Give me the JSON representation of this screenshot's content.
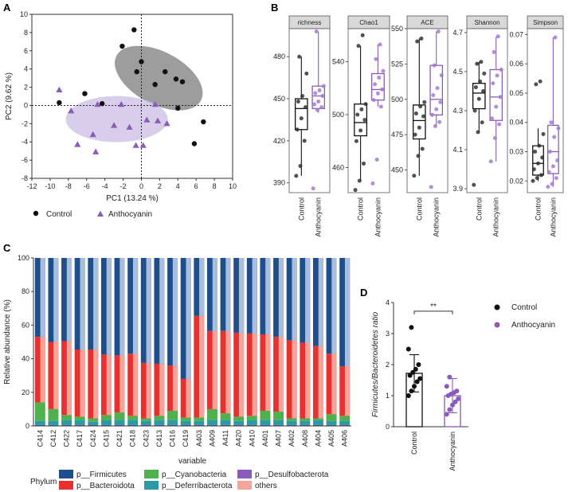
{
  "panel_letters": [
    "A",
    "B",
    "C",
    "D"
  ],
  "colors": {
    "control": "#111111",
    "anthocyanin": "#8a5bb8",
    "control_ellipse": "#8c8c8c",
    "anthocyanin_ellipse": "#cbbde6",
    "firmicutes": "#1f4e8c",
    "firmicutes_light": "#a9bedb",
    "bacteroidota": "#e8312f",
    "bacteroidota_light": "#f4a49a",
    "cyanobacteria": "#4fb04d",
    "deferribacterota": "#2a9aa4",
    "desulfobacterota": "#8a5bb8",
    "others": "#f4a49a"
  },
  "chart_data": [
    {
      "id": "A",
      "type": "scatter",
      "xlabel": "PC1 (13.24 %)",
      "ylabel": "PC2 (9.62 %)",
      "xlim": [
        -12,
        10
      ],
      "ylim": [
        -8,
        10
      ],
      "xticks": [
        -12,
        -10,
        -8,
        -6,
        -4,
        -2,
        0,
        2,
        4,
        6,
        8,
        10
      ],
      "yticks": [
        -8,
        -6,
        -4,
        -2,
        0,
        2,
        4,
        6,
        8,
        10
      ],
      "legend": [
        "Control",
        "Anthocyanin"
      ],
      "series": [
        {
          "name": "Control",
          "points": [
            [
              -0.8,
              8.3
            ],
            [
              -2.1,
              6.5
            ],
            [
              0,
              4.8
            ],
            [
              -0.5,
              3.7
            ],
            [
              2.6,
              3.7
            ],
            [
              3.8,
              2.9
            ],
            [
              4.5,
              2.6
            ],
            [
              1.5,
              2.3
            ],
            [
              -6.2,
              1.3
            ],
            [
              -9.0,
              0.3
            ],
            [
              -4.3,
              0.2
            ],
            [
              4.0,
              -0.3
            ],
            [
              6.8,
              -1.8
            ],
            [
              5.8,
              -4.2
            ]
          ]
        },
        {
          "name": "Anthocyanin",
          "points": [
            [
              -9.0,
              1.7
            ],
            [
              -7.7,
              -0.6
            ],
            [
              -4.8,
              0.1
            ],
            [
              -2.2,
              0.1
            ],
            [
              1.5,
              0.1
            ],
            [
              1.8,
              -1.7
            ],
            [
              2.8,
              -2.0
            ],
            [
              0.6,
              -1.6
            ],
            [
              -3.0,
              -2.2
            ],
            [
              -1.3,
              -2.4
            ],
            [
              -5.3,
              -3.2
            ],
            [
              -7.0,
              -4.3
            ],
            [
              -5.0,
              -5.1
            ],
            [
              -0.6,
              -4.4
            ],
            [
              0.2,
              -4.4
            ]
          ]
        }
      ]
    },
    {
      "id": "B-richness",
      "type": "box",
      "title": "richness",
      "ylim": [
        383,
        500
      ],
      "yticks": [
        390,
        420,
        450,
        480
      ],
      "categories": [
        "Control",
        "Anthocyanin"
      ],
      "boxes": [
        {
          "min": 395,
          "q1": 428,
          "median": 443,
          "q3": 450,
          "max": 480
        },
        {
          "min": 440,
          "q1": 443,
          "median": 452,
          "q3": 459,
          "max": 498
        }
      ],
      "points": [
        [
          395,
          402,
          420,
          428,
          436,
          444,
          448,
          452,
          468,
          480
        ],
        [
          386,
          442,
          444,
          446,
          448,
          452,
          454,
          456,
          459,
          498
        ]
      ]
    },
    {
      "id": "B-chao1",
      "type": "box",
      "title": "Chao1",
      "ylim": [
        441,
        565
      ],
      "yticks": [
        460,
        500,
        540
      ],
      "categories": [
        "Control",
        "Anthocyanin"
      ],
      "boxes": [
        {
          "min": 450,
          "q1": 484,
          "median": 494,
          "q3": 508,
          "max": 552
        },
        {
          "min": 506,
          "q1": 511,
          "median": 519,
          "q3": 531,
          "max": 553
        }
      ],
      "points": [
        [
          443,
          450,
          463,
          480,
          488,
          496,
          500,
          504,
          508,
          552,
          560
        ],
        [
          448,
          466,
          506,
          511,
          516,
          519,
          523,
          528,
          533,
          542,
          553
        ]
      ]
    },
    {
      "id": "B-ace",
      "type": "box",
      "title": "ACE",
      "ylim": [
        434,
        550
      ],
      "yticks": [
        450,
        475,
        500,
        525,
        550
      ],
      "categories": [
        "Control",
        "Anthocyanin"
      ],
      "boxes": [
        {
          "min": 446,
          "q1": 472,
          "median": 485,
          "q3": 496,
          "max": 543
        },
        {
          "min": 481,
          "q1": 489,
          "median": 500,
          "q3": 524,
          "max": 548
        }
      ],
      "points": [
        [
          446,
          460,
          465,
          475,
          480,
          488,
          490,
          495,
          498,
          541,
          543
        ],
        [
          438,
          481,
          484,
          489,
          493,
          498,
          503,
          508,
          517,
          524,
          548
        ]
      ]
    },
    {
      "id": "B-shannon",
      "type": "box",
      "title": "Shannon",
      "ylim": [
        3.88,
        4.72
      ],
      "yticks": [
        3.9,
        4.1,
        4.3,
        4.5,
        4.7
      ],
      "categories": [
        "Control",
        "Anthocyanin"
      ],
      "boxes": [
        {
          "min": 4.19,
          "q1": 4.31,
          "median": 4.39,
          "q3": 4.44,
          "max": 4.55
        },
        {
          "min": 4.04,
          "q1": 4.25,
          "median": 4.37,
          "q3": 4.51,
          "max": 4.68
        }
      ],
      "points": [
        [
          3.92,
          4.19,
          4.24,
          4.3,
          4.36,
          4.4,
          4.42,
          4.45,
          4.49,
          4.54,
          4.55
        ],
        [
          4.04,
          4.16,
          4.23,
          4.26,
          4.32,
          4.37,
          4.44,
          4.48,
          4.51,
          4.6,
          4.68
        ]
      ]
    },
    {
      "id": "B-simpson",
      "type": "box",
      "title": "Simpson",
      "ylim": [
        0.016,
        0.072
      ],
      "yticks": [
        0.02,
        0.03,
        0.04,
        0.05,
        0.06,
        0.07
      ],
      "categories": [
        "Control",
        "Anthocyanin"
      ],
      "boxes": [
        {
          "min": 0.02,
          "q1": 0.022,
          "median": 0.026,
          "q3": 0.032,
          "max": 0.038
        },
        {
          "min": 0.018,
          "q1": 0.0225,
          "median": 0.03,
          "q3": 0.039,
          "max": 0.069
        }
      ],
      "points": [
        [
          0.02,
          0.021,
          0.022,
          0.024,
          0.026,
          0.028,
          0.03,
          0.032,
          0.036,
          0.053,
          0.054
        ],
        [
          0.018,
          0.019,
          0.021,
          0.023,
          0.025,
          0.027,
          0.03,
          0.035,
          0.038,
          0.04,
          0.069
        ]
      ]
    },
    {
      "id": "C",
      "type": "bar",
      "stacked": true,
      "xlabel": "variable",
      "ylabel": "Relative abundance (%)",
      "ylim": [
        0,
        100
      ],
      "yticks": [
        0,
        20,
        40,
        60,
        80,
        100
      ],
      "legend_title": "Phylum",
      "categories": [
        "C414",
        "C412",
        "C422",
        "C417",
        "C424",
        "C415",
        "C421",
        "C418",
        "C423",
        "C413",
        "C416",
        "C419",
        "A403",
        "A409",
        "A411",
        "A420",
        "A410",
        "A401",
        "A407",
        "A402",
        "A408",
        "A404",
        "A405",
        "A406"
      ],
      "series": [
        {
          "name": "p__Desulfobacterota",
          "values": [
            0.5,
            0.5,
            0.5,
            0.5,
            0.5,
            0.5,
            0.5,
            0.5,
            0.5,
            0.5,
            0.5,
            0.5,
            0.5,
            0.5,
            0.5,
            0.5,
            0.5,
            0.5,
            0.5,
            0.5,
            0.5,
            0.5,
            0.5,
            0.5
          ]
        },
        {
          "name": "p__Deferribacterota",
          "values": [
            2.5,
            2.5,
            3,
            3,
            2,
            3,
            3,
            3,
            2.5,
            3,
            3,
            2.5,
            2.5,
            3,
            3,
            2.5,
            3,
            3,
            3,
            2.5,
            2.5,
            3,
            2.5,
            2.5
          ]
        },
        {
          "name": "p__Cyanobacteria",
          "values": [
            11,
            7,
            3,
            2,
            2,
            3,
            4.5,
            2.5,
            1.5,
            2.5,
            5.5,
            2,
            2,
            6.5,
            4,
            2.5,
            2.5,
            5.5,
            5,
            1.5,
            1.5,
            1,
            4,
            3
          ]
        },
        {
          "name": "p__Bacteroidota",
          "values": [
            39,
            40,
            44,
            40,
            41,
            36,
            34,
            37,
            33,
            31,
            27,
            23,
            60.5,
            46.5,
            49,
            50,
            49,
            45.5,
            44.5,
            46.5,
            45,
            43,
            36,
            29.5
          ]
        },
        {
          "name": "others",
          "values": [
            0,
            0,
            0,
            0,
            0,
            0,
            0,
            0,
            0,
            0,
            0,
            0,
            0,
            0,
            0,
            0,
            0,
            0,
            0,
            0,
            0,
            0,
            0,
            0
          ]
        },
        {
          "name": "p__Firmicutes",
          "values": [
            47,
            50,
            49.5,
            54.5,
            54.5,
            57.5,
            58,
            57,
            62.5,
            63,
            64,
            72,
            34.5,
            43.5,
            43.5,
            44.5,
            45,
            45.5,
            47,
            49,
            50.5,
            52.5,
            57,
            64.5
          ]
        }
      ],
      "legend": [
        "p__Firmicutes",
        "p__Bacteroidota",
        "p__Cyanobacteria",
        "p__Deferribacterota",
        "p__Desulfobacterota",
        "others"
      ]
    },
    {
      "id": "D",
      "type": "bar",
      "ylabel": "Firmicutes/Bacteroidetes ratio",
      "ylim": [
        0,
        4
      ],
      "yticks": [
        0,
        1,
        2,
        3,
        4
      ],
      "categories": [
        "Control",
        "Anthocyanin"
      ],
      "values": [
        1.72,
        1.0
      ],
      "sd": [
        0.6,
        0.55
      ],
      "significance": "**",
      "legend": [
        "Control",
        "Anthocyanin"
      ],
      "points": [
        [
          1.0,
          1.15,
          1.3,
          1.45,
          1.55,
          1.65,
          1.75,
          1.85,
          2.0,
          2.5,
          3.2
        ],
        [
          0.4,
          0.55,
          0.7,
          0.8,
          0.9,
          1.0,
          1.05,
          1.1,
          1.15,
          1.3,
          1.6
        ]
      ]
    }
  ]
}
